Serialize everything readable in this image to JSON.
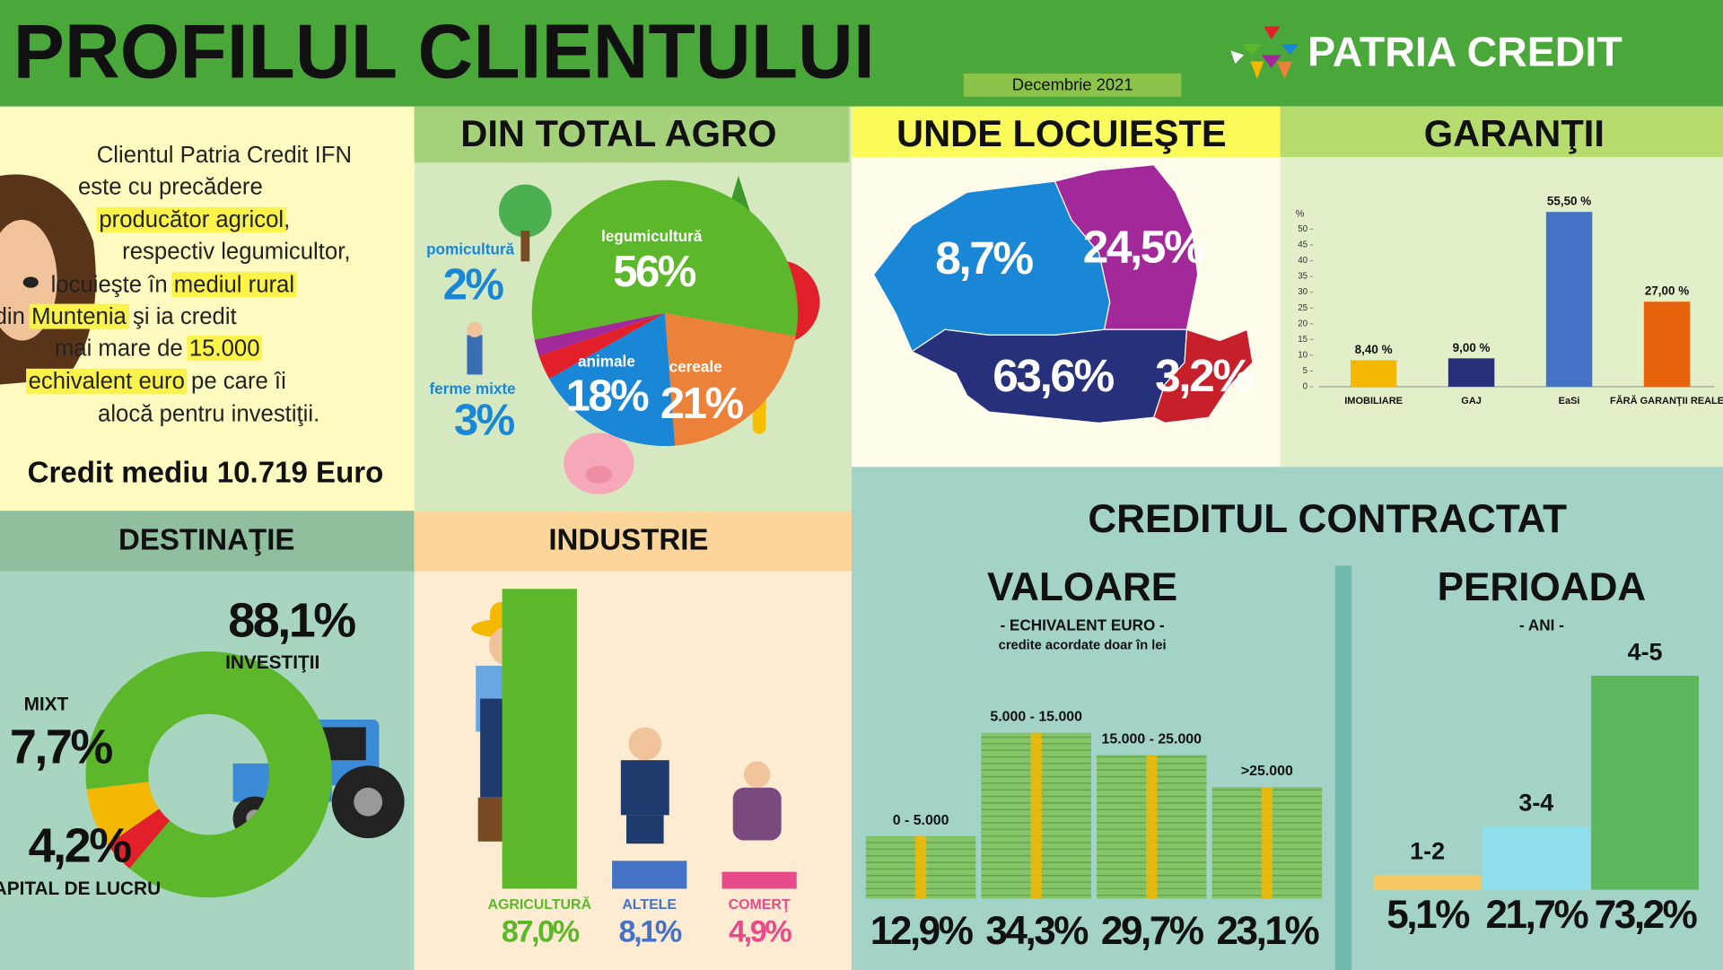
{
  "header": {
    "title": "PROFILUL CLIENTULUI",
    "date": "Decembrie 2021",
    "logo": "PATRIA CREDIT"
  },
  "intro": {
    "lines": [
      [
        "Clientul Patria Credit IFN"
      ],
      [
        "este cu precădere"
      ],
      [
        "producător agricol",
        ","
      ],
      [
        "respectiv legumicultor,"
      ],
      [
        "locuieşte în ",
        "mediul rural"
      ],
      [
        "din ",
        "Muntenia",
        " şi ia credit"
      ],
      [
        "mai mare de ",
        "15.000"
      ],
      [
        "echivalent euro",
        " pe care îi"
      ],
      [
        "alocă pentru investiţii."
      ]
    ],
    "summary": "Credit mediu 10.719 Euro"
  },
  "section_title": "CREDITUL CONTRACTAT",
  "chart_data": [
    {
      "type": "pie",
      "title": "DIN TOTAL AGRO",
      "categories": [
        "legumicultură",
        "cereale",
        "animale",
        "ferme mixte",
        "pomicultură"
      ],
      "values": [
        56,
        21,
        18,
        3,
        2
      ],
      "value_labels": [
        "56%",
        "21%",
        "18%",
        "3%",
        "2%"
      ],
      "colors": [
        "#5cb82a",
        "#ec823a",
        "#1a86d6",
        "#e2202a",
        "#a3289a"
      ]
    },
    {
      "type": "map",
      "title": "UNDE LOCUIEŞTE",
      "categories": [
        null,
        null,
        null,
        null
      ],
      "values": [
        8.7,
        24.5,
        63.6,
        3.2
      ],
      "value_labels": [
        "8,7%",
        "24,5%",
        "63,6%",
        "3,2%"
      ],
      "colors": [
        "#1a86d6",
        "#a3289a",
        "#27307a",
        "#c8202a"
      ]
    },
    {
      "type": "bar",
      "title": "GARANŢII",
      "ylabel": "%",
      "categories": [
        "IMOBILIARE",
        "GAJ",
        "EaSi",
        "FĂRĂ GARANŢII REALE"
      ],
      "values": [
        8.4,
        9,
        55.5,
        27
      ],
      "value_labels": [
        "8,40 %",
        "9,00 %",
        "55,50 %",
        "27,00 %"
      ],
      "colors": [
        "#f5b800",
        "#2a2f7a",
        "#4472c4",
        "#e8640c"
      ],
      "ylim": [
        0,
        60
      ],
      "yticks": [
        0,
        5,
        10,
        15,
        20,
        25,
        30,
        35,
        40,
        45,
        50
      ]
    },
    {
      "type": "donut",
      "title": "DESTINAŢIE",
      "categories": [
        "INVESTIŢII",
        "MIXT",
        "CAPITAL DE LUCRU"
      ],
      "values": [
        88.1,
        7.7,
        4.2
      ],
      "value_labels": [
        "88,1%",
        "7,7%",
        "4,2%"
      ],
      "colors": [
        "#5cb82a",
        "#f5b800",
        "#e2202a"
      ]
    },
    {
      "type": "bar",
      "title": "INDUSTRIE",
      "categories": [
        "AGRICULTURĂ",
        "ALTELE",
        "COMERŢ"
      ],
      "values": [
        87,
        8.1,
        4.9
      ],
      "value_labels": [
        "87,0%",
        "8,1%",
        "4,9%"
      ],
      "colors": [
        "#5cb82a",
        "#4472c4",
        "#e84a8a"
      ],
      "ylim": [
        0,
        90
      ]
    },
    {
      "type": "bar",
      "title": "VALOARE",
      "subtitle": "- ECHIVALENT EURO -",
      "note": "credite acordate doar în lei",
      "categories": [
        "0 - 5.000",
        "5.000 - 15.000",
        "15.000 - 25.000",
        ">25.000"
      ],
      "values": [
        12.9,
        34.3,
        29.7,
        23.1
      ],
      "value_labels": [
        "12,9%",
        "34,3%",
        "29,7%",
        "23,1%"
      ],
      "colors": [
        "#86c46a",
        "#86c46a",
        "#86c46a",
        "#86c46a"
      ],
      "ylim": [
        0,
        40
      ]
    },
    {
      "type": "bar",
      "title": "PERIOADA",
      "subtitle": "- ANI -",
      "categories": [
        "1-2",
        "3-4",
        "4-5"
      ],
      "values": [
        5.1,
        21.7,
        73.2
      ],
      "value_labels": [
        "5,1%",
        "21,7%",
        "73,2%"
      ],
      "colors": [
        "#f5c862",
        "#8fe0ec",
        "#5cb85c"
      ],
      "ylim": [
        0,
        80
      ]
    }
  ]
}
